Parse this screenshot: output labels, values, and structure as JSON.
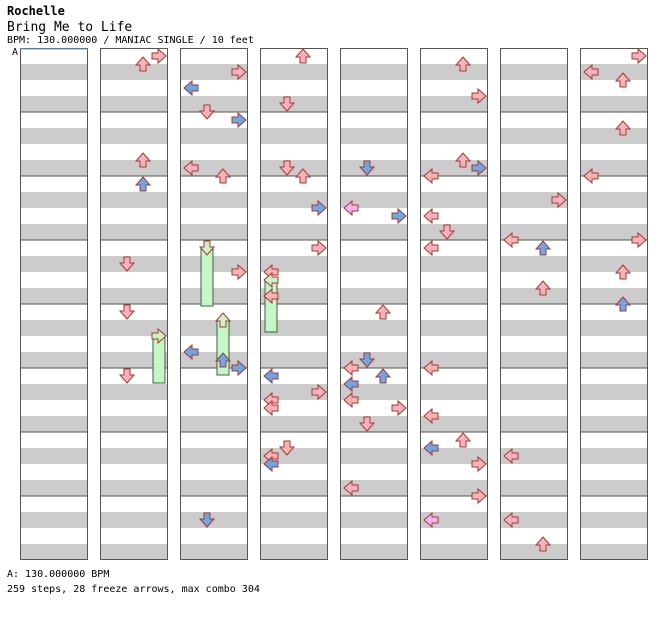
{
  "artist": "Rochelle",
  "title": "Bring Me to Life",
  "meta": "BPM: 130.000000 / MANIAC SINGLE / 10 feet",
  "segment_label": "A",
  "bpm_line": "A: 130.000000 BPM",
  "stats": "259 steps, 28 freeze arrows, max combo 304",
  "colors": {
    "stripe": "#cccccc",
    "border": "#555555",
    "note_red": "#f8b4b4",
    "note_blue": "#6aa8e8",
    "note_pink": "#f3b5f3",
    "freeze": "#c8f5c8",
    "outline": "#aa3333",
    "bpm_marker": "#5aa0ff"
  }
}
